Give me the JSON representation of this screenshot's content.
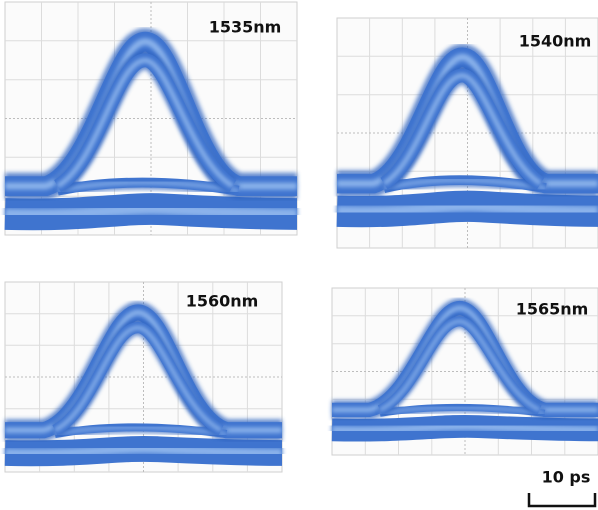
{
  "panels": [
    {
      "label": "1535nm"
    },
    {
      "label": "1540nm"
    },
    {
      "label": "1560nm"
    },
    {
      "label": "1565nm"
    }
  ],
  "scale_bar": {
    "label": "10 ps"
  }
}
